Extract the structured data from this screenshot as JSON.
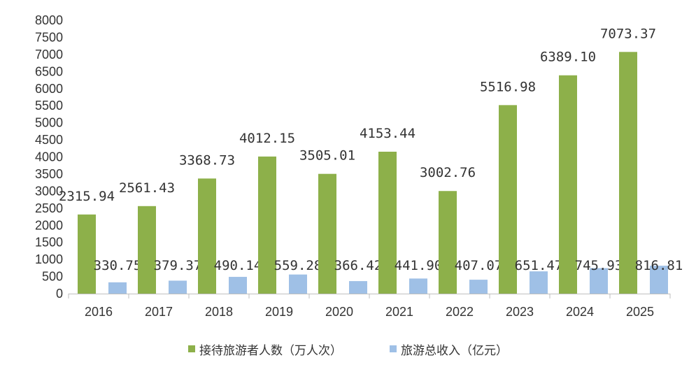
{
  "chart_data": {
    "type": "bar",
    "title": "",
    "xlabel": "",
    "ylabel": "",
    "ylim": [
      0,
      8000
    ],
    "yticks": [
      0,
      500,
      1000,
      1500,
      2000,
      2500,
      3000,
      3500,
      4000,
      4500,
      5000,
      5500,
      6000,
      6500,
      7000,
      7500,
      8000
    ],
    "grid": false,
    "legend_position": "bottom",
    "categories": [
      "2016",
      "2017",
      "2018",
      "2019",
      "2020",
      "2021",
      "2022",
      "2023",
      "2024",
      "2025"
    ],
    "series": [
      {
        "name": "接待旅游者人数（万人次）",
        "color": "#8db04a",
        "values": [
          2315.94,
          2561.43,
          3368.73,
          4012.15,
          3505.01,
          4153.44,
          3002.76,
          5516.98,
          6389.1,
          7073.37
        ],
        "labels": [
          "2315.94",
          "2561.43",
          "3368.73",
          "4012.15",
          "3505.01",
          "4153.44",
          "3002.76",
          "5516.98",
          "6389.10",
          "7073.37"
        ]
      },
      {
        "name": "旅游总收入（亿元）",
        "color": "#9fc0e6",
        "values": [
          330.75,
          379.37,
          490.14,
          559.28,
          366.42,
          441.9,
          407.07,
          651.47,
          745.93,
          816.81
        ],
        "labels": [
          "330.75",
          "379.37",
          "490.14",
          "559.28",
          "366.42",
          "441.90",
          "407.07",
          "651.47",
          "745.93",
          "816.81"
        ]
      }
    ]
  }
}
